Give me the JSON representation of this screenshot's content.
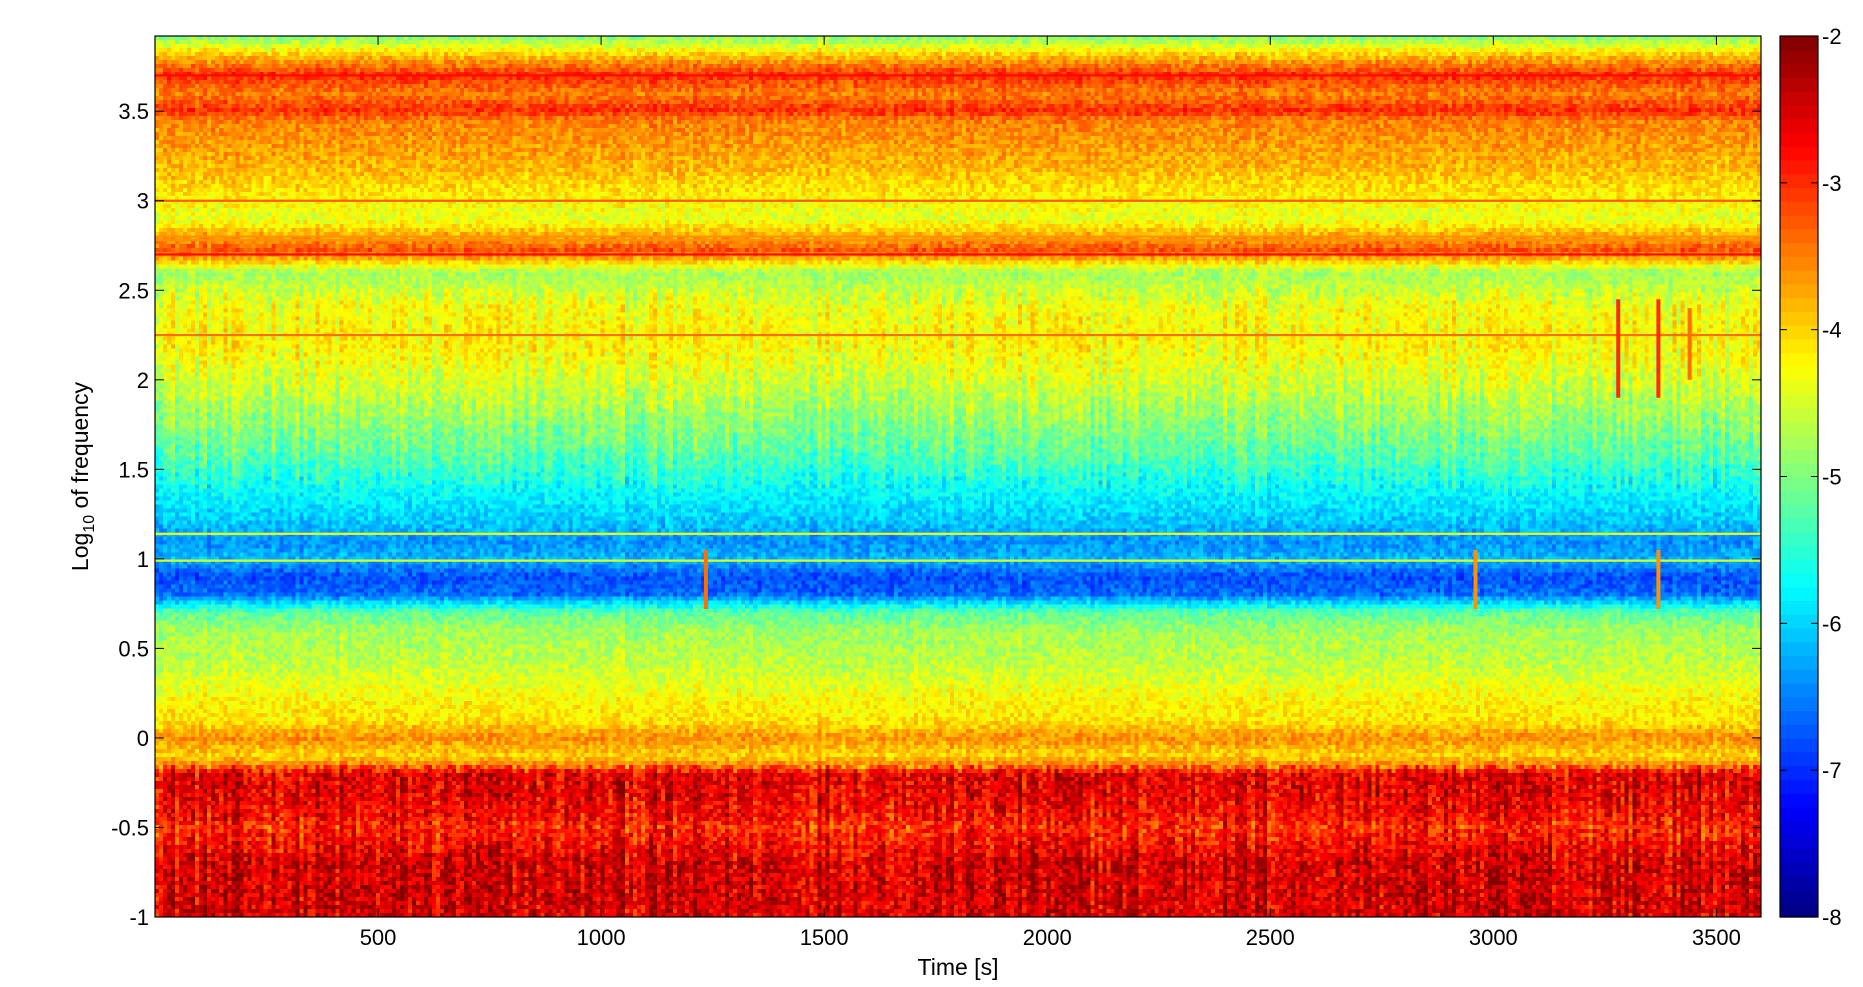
{
  "chart_data": {
    "type": "heatmap",
    "title": "",
    "xlabel": "Time [s]",
    "ylabel": {
      "prefix": "Log",
      "subscript": "10",
      "suffix": " of frequency"
    },
    "xlim": [
      0,
      3600
    ],
    "ylim": [
      -1,
      3.92
    ],
    "xticks": [
      500,
      1000,
      1500,
      2000,
      2500,
      3000,
      3500
    ],
    "xtick_labels": [
      "500",
      "1000",
      "1500",
      "2000",
      "2500",
      "3000",
      "3500"
    ],
    "yticks": [
      -1,
      -0.5,
      0,
      0.5,
      1,
      1.5,
      2,
      2.5,
      3,
      3.5
    ],
    "ytick_labels": [
      "-1",
      "-0.5",
      "0",
      "0.5",
      "1",
      "1.5",
      "2",
      "2.5",
      "3",
      "3.5"
    ],
    "colorbar": {
      "range": [
        -8,
        -2
      ],
      "ticks": [
        -8,
        -7,
        -6,
        -5,
        -4,
        -3,
        -2
      ],
      "tick_labels": [
        "-8",
        "-7",
        "-6",
        "-5",
        "-4",
        "-3",
        "-2"
      ],
      "colormap": "jet",
      "placement": "right"
    },
    "grid": false,
    "frequency_profile": {
      "log10_frequency": [
        -1.0,
        -0.7,
        -0.5,
        -0.45,
        -0.3,
        -0.2,
        -0.15,
        -0.1,
        0.0,
        0.1,
        0.2,
        0.4,
        0.6,
        0.7,
        0.8,
        0.9,
        1.0,
        1.1,
        1.2,
        1.4,
        1.6,
        2.0,
        2.2,
        2.4,
        2.6,
        2.72,
        2.9,
        3.2,
        3.45,
        3.5,
        3.6,
        3.7,
        3.8,
        3.92
      ],
      "mean_log10_power": [
        -2.5,
        -2.5,
        -3.0,
        -2.8,
        -2.6,
        -2.6,
        -3.5,
        -4.0,
        -3.6,
        -4.1,
        -4.2,
        -4.6,
        -4.8,
        -5.2,
        -6.6,
        -6.8,
        -6.2,
        -6.4,
        -6.1,
        -5.7,
        -5.2,
        -4.5,
        -4.2,
        -4.3,
        -4.8,
        -3.2,
        -4.4,
        -3.8,
        -3.5,
        -3.0,
        -3.5,
        -3.0,
        -3.8,
        -5.0
      ]
    },
    "lines": [
      {
        "log10_frequency": 3.7,
        "log10_power": -2.8
      },
      {
        "log10_frequency": 3.0,
        "log10_power": -3.3
      },
      {
        "log10_frequency": 2.8,
        "log10_power": -3.6
      },
      {
        "log10_frequency": 2.78,
        "log10_power": -3.6
      },
      {
        "log10_frequency": 2.7,
        "log10_power": -2.8
      },
      {
        "log10_frequency": 2.25,
        "log10_power": -3.4
      },
      {
        "log10_frequency": 1.14,
        "log10_power": -4.3
      },
      {
        "log10_frequency": 0.99,
        "log10_power": -4.5
      }
    ],
    "events": [
      {
        "time": 1235,
        "log10_frequency_range": [
          0.72,
          1.05
        ],
        "log10_power": -3.4
      },
      {
        "time": 2960,
        "log10_frequency_range": [
          0.72,
          1.05
        ],
        "log10_power": -3.6
      },
      {
        "time": 3370,
        "log10_frequency_range": [
          0.72,
          1.05
        ],
        "log10_power": -3.6
      },
      {
        "time": 3280,
        "log10_frequency_range": [
          1.9,
          2.45
        ],
        "log10_power": -3.0
      },
      {
        "time": 3370,
        "log10_frequency_range": [
          1.9,
          2.45
        ],
        "log10_power": -3.0
      },
      {
        "time": 3440,
        "log10_frequency_range": [
          2.0,
          2.4
        ],
        "log10_power": -3.4
      }
    ]
  }
}
